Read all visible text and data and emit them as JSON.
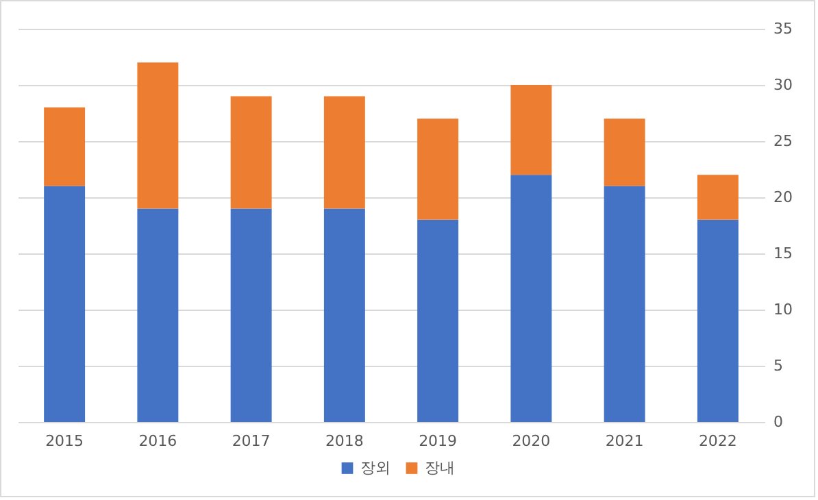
{
  "chart_data": {
    "type": "bar",
    "stacked": true,
    "categories": [
      "2015",
      "2016",
      "2017",
      "2018",
      "2019",
      "2020",
      "2021",
      "2022"
    ],
    "series": [
      {
        "name": "장외",
        "color": "#4472c4",
        "values": [
          21,
          19,
          19,
          19,
          18,
          22,
          21,
          18
        ]
      },
      {
        "name": "장내",
        "color": "#ed7d31",
        "values": [
          7,
          13,
          10,
          10,
          9,
          8,
          6,
          4
        ]
      }
    ],
    "ylim": [
      0,
      35
    ],
    "yticks": [
      0,
      5,
      10,
      15,
      20,
      25,
      30,
      35
    ],
    "grid": "y",
    "legend": "bottom"
  }
}
